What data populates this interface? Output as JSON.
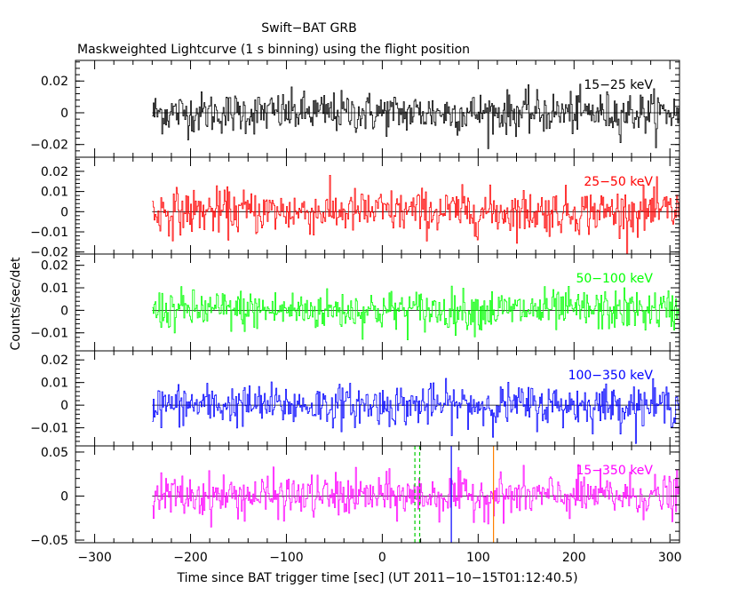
{
  "chart_data": {
    "type": "line",
    "title": "Swift−BAT GRB",
    "subtitle": "Maskweighted Lightcurve (1 s binning) using the flight position",
    "xlabel": "Time since BAT trigger time [sec] (UT 2011−10−15T01:12:40.5)",
    "ylabel": "Counts/sec/det",
    "xlim": [
      -320,
      310
    ],
    "x_ticks": [
      -300,
      -200,
      -100,
      0,
      100,
      200,
      300
    ],
    "x_tick_labels": [
      "−300",
      "−200",
      "−100",
      "0",
      "100",
      "200",
      "300"
    ],
    "data_start": -240,
    "data_end": 310,
    "binning_sec": 1,
    "panels": [
      {
        "name": "15−25 keV",
        "color": "#000000",
        "ylim": [
          -0.028,
          0.033
        ],
        "ticks": [
          -0.02,
          0,
          0.02
        ],
        "tick_labels": [
          "−0.02",
          "0",
          "0.02"
        ],
        "noise_sigma": 0.0065
      },
      {
        "name": "25−50 keV",
        "color": "#ff0000",
        "ylim": [
          -0.021,
          0.027
        ],
        "ticks": [
          -0.02,
          -0.01,
          0,
          0.01,
          0.02
        ],
        "tick_labels": [
          "−0.02",
          "−0.01",
          "0",
          "0.01",
          "0.02"
        ],
        "noise_sigma": 0.0055
      },
      {
        "name": "50−100 keV",
        "color": "#00ff00",
        "ylim": [
          -0.018,
          0.025
        ],
        "ticks": [
          -0.01,
          0,
          0.01,
          0.02
        ],
        "tick_labels": [
          "−0.01",
          "0",
          "0.01",
          "0.02"
        ],
        "noise_sigma": 0.0045
      },
      {
        "name": "100−350 keV",
        "color": "#0000ff",
        "ylim": [
          -0.018,
          0.024
        ],
        "ticks": [
          -0.01,
          0,
          0.01,
          0.02
        ],
        "tick_labels": [
          "−0.01",
          "0",
          "0.01",
          "0.02"
        ],
        "noise_sigma": 0.0045
      },
      {
        "name": "15−350 keV",
        "color": "#ff00ff",
        "ylim": [
          -0.053,
          0.057
        ],
        "ticks": [
          -0.05,
          0,
          0.05
        ],
        "tick_labels": [
          "−0.05",
          "0",
          "0.05"
        ],
        "noise_sigma": 0.012
      }
    ],
    "markers": [
      {
        "x": 34,
        "color": "#00cc00",
        "style": "dashed"
      },
      {
        "x": 39,
        "color": "#00cc00",
        "style": "dashed"
      },
      {
        "x": 72,
        "color": "#0000ff",
        "style": "solid"
      },
      {
        "x": 116,
        "color": "#ff8000",
        "style": "solid"
      }
    ]
  }
}
